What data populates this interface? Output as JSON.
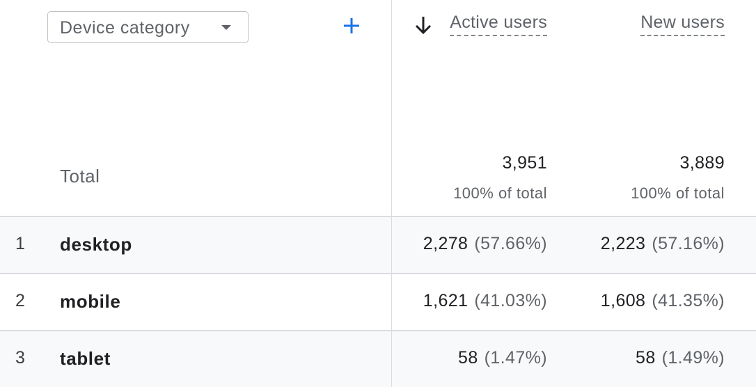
{
  "dimension_selector": "Device category",
  "columns": [
    "Active users",
    "New users"
  ],
  "total": {
    "label": "Total",
    "values": [
      "3,951",
      "3,889"
    ],
    "shares": [
      "100% of total",
      "100% of total"
    ]
  },
  "rows": [
    {
      "index": "1",
      "label": "desktop",
      "values": [
        "2,278",
        "2,223"
      ],
      "shares": [
        "(57.66%)",
        "(57.16%)"
      ]
    },
    {
      "index": "2",
      "label": "mobile",
      "values": [
        "1,621",
        "1,608"
      ],
      "shares": [
        "(41.03%)",
        "(41.35%)"
      ]
    },
    {
      "index": "3",
      "label": "tablet",
      "values": [
        "58",
        "58"
      ],
      "shares": [
        "(1.47%)",
        "(1.49%)"
      ]
    }
  ]
}
